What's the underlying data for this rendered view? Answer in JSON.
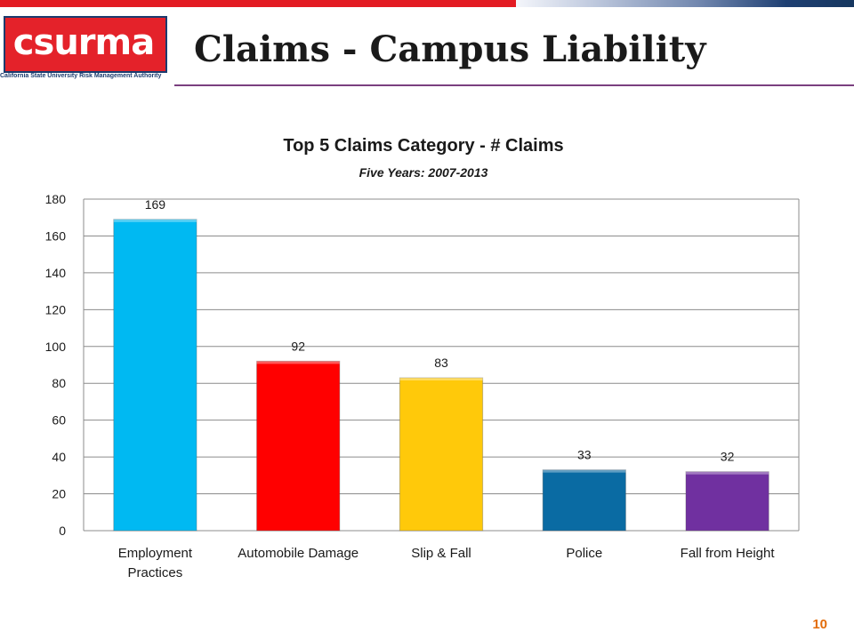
{
  "slide": {
    "title": "Claims - Campus Liability",
    "page_number": "10"
  },
  "logo": {
    "name": "csurma",
    "tagline": "California State University Risk Management Authority"
  },
  "colors": {
    "bar_colors": [
      "#00b9f2",
      "#ff0000",
      "#ffc90a",
      "#0a6ba3",
      "#7030a0"
    ],
    "accent_red": "#e31b23",
    "accent_blue": "#1e3f72",
    "page_number": "#e36c0a"
  },
  "chart_data": {
    "type": "bar",
    "title": "Top 5 Claims Category - # Claims",
    "subtitle": "Five Years: 2007-2013",
    "categories": [
      "Employment Practices",
      "Automobile Damage",
      "Slip & Fall",
      "Police",
      "Fall from Height"
    ],
    "values": [
      169,
      92,
      83,
      33,
      32
    ],
    "ylim": [
      0,
      180
    ],
    "y_ticks": [
      0,
      20,
      40,
      60,
      80,
      100,
      120,
      140,
      160,
      180
    ],
    "grid": true,
    "legend": "none"
  }
}
